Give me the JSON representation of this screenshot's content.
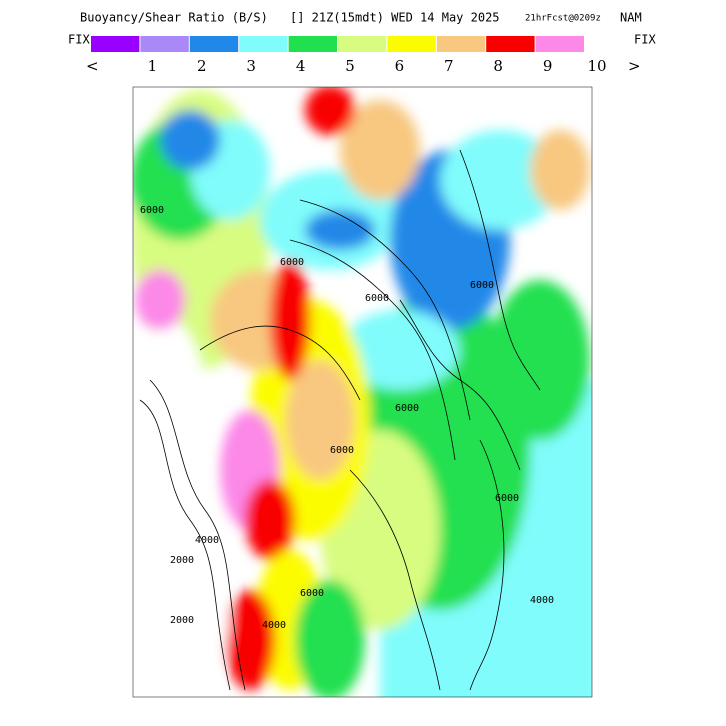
{
  "header": {
    "title": "Buoyancy/Shear Ratio (B/S)",
    "time": "[] 21Z(15mdt) WED 14 May 2025",
    "forecast": "21hrFcst@0209z",
    "model": "NAM"
  },
  "legend": {
    "left_label": "FIX",
    "right_label": "FIX",
    "left_arrow": "<",
    "right_arrow": ">",
    "colors": [
      "#9a00ff",
      "#aa88f8",
      "#2088e8",
      "#80fcfc",
      "#20e050",
      "#d8fc80",
      "#fcfc00",
      "#f8c880",
      "#f80000",
      "#fc88e8"
    ],
    "labels": [
      "1",
      "2",
      "3",
      "4",
      "5",
      "6",
      "7",
      "8",
      "9",
      "10"
    ]
  },
  "map": {
    "contour_labels": [
      "6000",
      "6000",
      "6000",
      "6000",
      "6000",
      "6000",
      "6000",
      "2000",
      "4000",
      "2000",
      "4000",
      "4000",
      "6000"
    ]
  }
}
